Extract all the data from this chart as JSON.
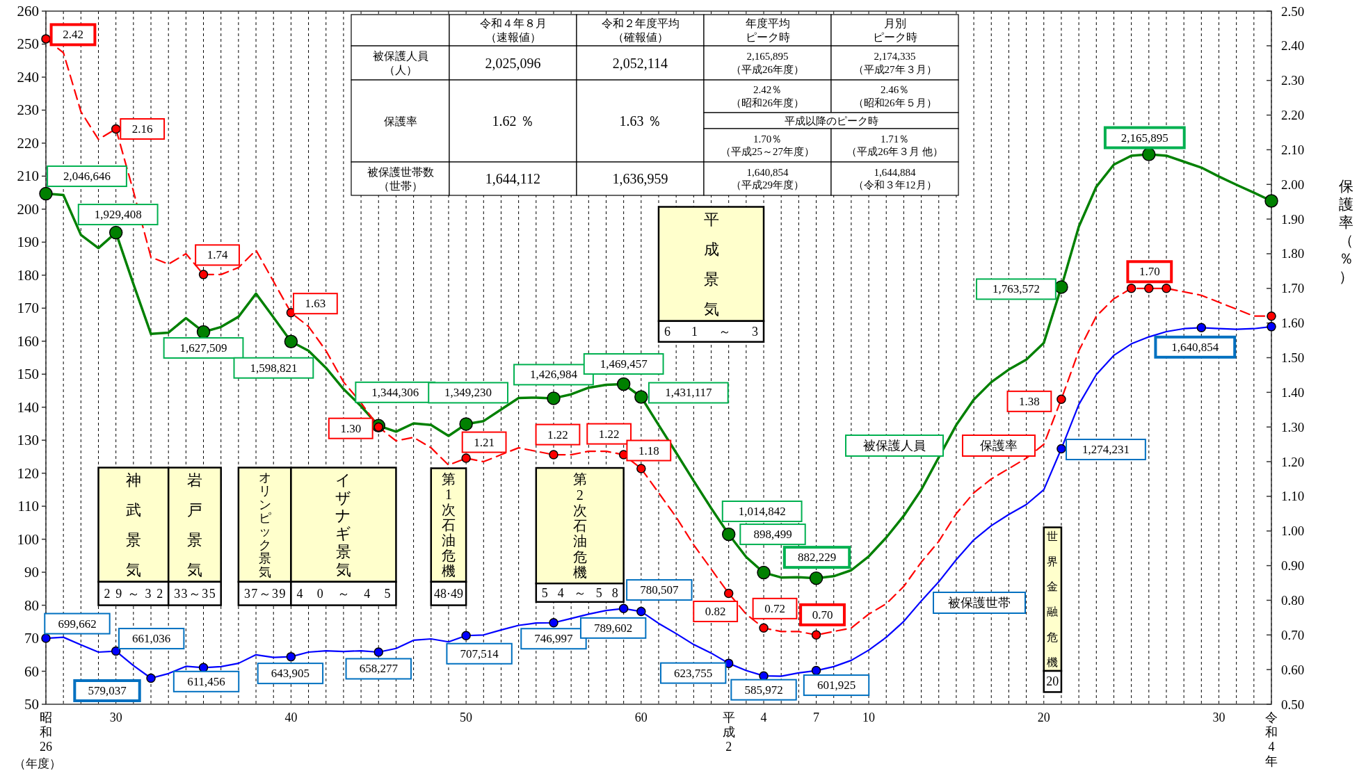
{
  "chart_data": {
    "type": "line",
    "categories": [
      "昭和26",
      null,
      null,
      null,
      "30",
      null,
      null,
      null,
      null,
      null,
      null,
      null,
      null,
      null,
      "40",
      null,
      null,
      null,
      null,
      null,
      null,
      null,
      null,
      null,
      "50",
      null,
      null,
      null,
      null,
      null,
      null,
      null,
      null,
      null,
      "60",
      null,
      null,
      null,
      null,
      "平成2",
      null,
      "4",
      null,
      null,
      "7",
      null,
      null,
      "10",
      null,
      null,
      null,
      null,
      null,
      null,
      null,
      null,
      null,
      "20",
      null,
      null,
      null,
      null,
      null,
      null,
      null,
      null,
      null,
      "30",
      null,
      null,
      "令和4年"
    ],
    "series": [
      {
        "name": "被保護人員",
        "color": "#008000",
        "line_style": "solid",
        "values": [
          204.7,
          204.3,
          192.2,
          188.2,
          192.9,
          177.3,
          162.2,
          162.6,
          167.0,
          162.8,
          164.3,
          167.4,
          174.4,
          167.2,
          159.9,
          157.1,
          151.9,
          145.5,
          140.3,
          134.4,
          132.6,
          135.1,
          134.6,
          131.3,
          134.9,
          135.8,
          139.3,
          142.8,
          142.9,
          142.7,
          143.9,
          145.9,
          146.8,
          147.0,
          143.1,
          134.6,
          126.2,
          117.7,
          109.4,
          101.5,
          94.6,
          89.9,
          88.4,
          88.5,
          88.2,
          88.8,
          90.6,
          94.8,
          100.5,
          107.1,
          115.0,
          124.8,
          134.6,
          142.3,
          147.6,
          151.4,
          154.4,
          159.5,
          176.4,
          194.7,
          206.8,
          213.5,
          216.2,
          216.6,
          216.2,
          214.4,
          212.6,
          209.9,
          207.4,
          205.0,
          202.5
        ]
      },
      {
        "name": "保護率",
        "color": "#ff0000",
        "line_style": "dashed",
        "axis": "y2",
        "values": [
          2.42,
          2.38,
          2.21,
          2.13,
          2.16,
          1.98,
          1.79,
          1.77,
          1.8,
          1.74,
          1.74,
          1.76,
          1.81,
          1.72,
          1.63,
          1.59,
          1.52,
          1.43,
          1.37,
          1.3,
          1.26,
          1.27,
          1.24,
          1.19,
          1.21,
          1.2,
          1.22,
          1.24,
          1.23,
          1.22,
          1.22,
          1.23,
          1.23,
          1.22,
          1.18,
          1.11,
          1.04,
          0.96,
          0.89,
          0.82,
          0.76,
          0.72,
          0.71,
          0.71,
          0.7,
          0.71,
          0.72,
          0.76,
          0.79,
          0.84,
          0.91,
          0.97,
          1.05,
          1.11,
          1.15,
          1.18,
          1.21,
          1.25,
          1.38,
          1.52,
          1.62,
          1.67,
          1.7,
          1.7,
          1.7,
          1.69,
          1.68,
          1.66,
          1.64,
          1.62,
          1.62
        ],
        "value_labels": [
          "2.42",
          null,
          null,
          null,
          "2.16",
          null,
          null,
          null,
          null,
          "1.74",
          null,
          null,
          null,
          null,
          "1.63",
          null,
          null,
          null,
          null,
          "1.30",
          null,
          null,
          null,
          null,
          "1.21",
          null,
          null,
          null,
          null,
          "1.22",
          null,
          null,
          null,
          "1.22",
          "1.18",
          null,
          null,
          null,
          null,
          "0.82",
          null,
          "0.72",
          null,
          null,
          "0.70",
          null,
          null,
          null,
          null,
          null,
          null,
          null,
          null,
          null,
          null,
          null,
          null,
          null,
          "1.38",
          null,
          null,
          null,
          null,
          "1.70",
          null,
          null,
          null,
          null,
          null,
          null,
          null
        ]
      },
      {
        "name": "被保護世帯",
        "color": "#0000ff",
        "line_style": "solid",
        "values": [
          70.0,
          70.3,
          68.0,
          65.8,
          66.1,
          61.7,
          57.9,
          59.3,
          61.5,
          61.1,
          61.4,
          62.4,
          65.0,
          64.2,
          64.4,
          65.8,
          66.2,
          66.0,
          66.2,
          65.8,
          66.9,
          69.4,
          69.8,
          68.9,
          70.8,
          71.0,
          72.5,
          73.9,
          74.6,
          74.7,
          76.0,
          77.3,
          78.4,
          79.0,
          78.1,
          74.5,
          71.4,
          68.1,
          65.5,
          62.4,
          60.2,
          58.6,
          58.5,
          59.5,
          60.2,
          61.4,
          63.3,
          66.4,
          70.3,
          75.1,
          81.3,
          87.1,
          93.8,
          99.8,
          104.1,
          107.5,
          110.5,
          115.0,
          127.4,
          140.8,
          149.9,
          155.7,
          159.2,
          161.3,
          162.9,
          163.8,
          164.1,
          163.8,
          163.6,
          163.8,
          164.4
        ]
      },
      {
        "type": "scatter",
        "marker": "circle",
        "color": "#008000",
        "values": [
          204.7,
          null,
          null,
          null,
          192.9,
          null,
          null,
          null,
          null,
          162.8,
          null,
          null,
          null,
          null,
          159.9,
          null,
          null,
          null,
          null,
          134.4,
          null,
          null,
          null,
          null,
          134.9,
          null,
          null,
          null,
          null,
          142.7,
          null,
          null,
          null,
          147.0,
          143.1,
          null,
          null,
          null,
          null,
          101.5,
          null,
          89.9,
          null,
          null,
          88.2,
          null,
          null,
          null,
          null,
          null,
          null,
          null,
          null,
          null,
          null,
          null,
          null,
          null,
          176.4,
          null,
          null,
          null,
          null,
          216.6,
          null,
          null,
          null,
          null,
          null,
          null,
          202.5
        ]
      },
      {
        "type": "scatter",
        "marker": "circle",
        "color": "#ff0000",
        "axis": "y2",
        "values": [
          2.42,
          null,
          null,
          null,
          2.16,
          null,
          null,
          null,
          null,
          1.74,
          null,
          null,
          null,
          null,
          1.63,
          null,
          null,
          null,
          null,
          1.3,
          null,
          null,
          null,
          null,
          1.21,
          null,
          null,
          null,
          null,
          1.22,
          null,
          null,
          null,
          1.22,
          1.18,
          null,
          null,
          null,
          null,
          0.82,
          null,
          0.72,
          null,
          null,
          0.7,
          null,
          null,
          null,
          null,
          null,
          null,
          null,
          null,
          null,
          null,
          null,
          null,
          null,
          1.38,
          null,
          null,
          null,
          1.7,
          1.7,
          1.7,
          null,
          null,
          null,
          null,
          null,
          1.62
        ]
      },
      {
        "type": "scatter",
        "marker": "circle",
        "color": "#0000ff",
        "values": [
          70.0,
          null,
          null,
          null,
          66.1,
          null,
          57.9,
          null,
          null,
          61.1,
          null,
          null,
          null,
          null,
          64.4,
          null,
          null,
          null,
          null,
          65.8,
          null,
          null,
          null,
          null,
          70.8,
          null,
          null,
          null,
          null,
          74.7,
          null,
          null,
          null,
          79.0,
          78.1,
          null,
          null,
          null,
          null,
          62.4,
          null,
          58.6,
          null,
          null,
          60.2,
          null,
          null,
          null,
          null,
          null,
          null,
          null,
          null,
          null,
          null,
          null,
          null,
          null,
          127.4,
          null,
          null,
          null,
          null,
          null,
          null,
          null,
          164.1,
          null,
          null,
          null,
          164.4
        ]
      }
    ],
    "ylim": [
      50,
      260
    ],
    "yticks": [
      50,
      60,
      70,
      80,
      90,
      100,
      110,
      120,
      130,
      140,
      150,
      160,
      170,
      180,
      190,
      200,
      210,
      220,
      230,
      240,
      250,
      260
    ],
    "y2lim": [
      0.5,
      2.5
    ],
    "y2ticks": [
      {
        "value": 0.5,
        "label": "0.50"
      },
      {
        "value": 0.6,
        "label": "0.60"
      },
      {
        "value": 0.7,
        "label": "0.70"
      },
      {
        "value": 0.8,
        "label": "0.80"
      },
      {
        "value": 0.9,
        "label": "0.90"
      },
      {
        "value": 1.0,
        "label": "1.00"
      },
      {
        "value": 1.1,
        "label": "1.10"
      },
      {
        "value": 1.2,
        "label": "1.20"
      },
      {
        "value": 1.3,
        "label": "1.30"
      },
      {
        "value": 1.4,
        "label": "1.40"
      },
      {
        "value": 1.5,
        "label": "1.50"
      },
      {
        "value": 1.6,
        "label": "1.60"
      },
      {
        "value": 1.7,
        "label": "1.70"
      },
      {
        "value": 1.8,
        "label": "1.80"
      },
      {
        "value": 1.9,
        "label": "1.90"
      },
      {
        "value": 2.0,
        "label": "2.00"
      },
      {
        "value": 2.1,
        "label": "2.10"
      },
      {
        "value": 2.2,
        "label": "2.20"
      },
      {
        "value": 2.3,
        "label": "2.30"
      },
      {
        "value": 2.4,
        "label": "2.40"
      },
      {
        "value": 2.5,
        "label": "2.50"
      }
    ],
    "xlabel": "（年度）",
    "y2label": "保護率（％）",
    "grid": "x",
    "annotations": [
      "令和４年８月（速報値）",
      "令和２年度平均（確報値）",
      "年度平均ピーク時",
      "月別ピーク時",
      "被保護人員（人）",
      "2,025,096",
      "2,052,114",
      "2,165,895（平成26年度）",
      "2,174,335（平成27年３月）",
      "保護率",
      "1.62 ％",
      "1.63 ％",
      "2.42％（昭和26年度）",
      "2.46％（昭和26年５月）",
      "平成以降のピーク時",
      "1.70％（平成25～27年度）",
      "1.71％（平成26年３月 他）",
      "被保護世帯数（世帯）",
      "1,644,112",
      "1,636,959",
      "1,640,854（平成29年度）",
      "1,644,884（令和３年12月）",
      "神武景気",
      "29～32",
      "岩戸景気",
      "33～35",
      "オリンピック景気",
      "37～39",
      "イザナギ景気",
      "40～45",
      "第1次石油危機",
      "48·49",
      "第2次石油危機",
      "54～58",
      "平成景気",
      "61～3",
      "世界金融危機",
      "20",
      "2,046,646",
      "1,929,408",
      "1,627,509",
      "1,598,821",
      "1,344,306",
      "1,349,230",
      "1,426,984",
      "1,469,457",
      "1,431,117",
      "1,014,842",
      "898,499",
      "882,229",
      "1,763,572",
      "2,165,895",
      "699,662",
      "661,036",
      "579,037",
      "611,456",
      "643,905",
      "658,277",
      "707,514",
      "746,997",
      "789,602",
      "780,507",
      "623,755",
      "585,972",
      "601,925",
      "1,274,231",
      "1,640,854"
    ]
  }
}
